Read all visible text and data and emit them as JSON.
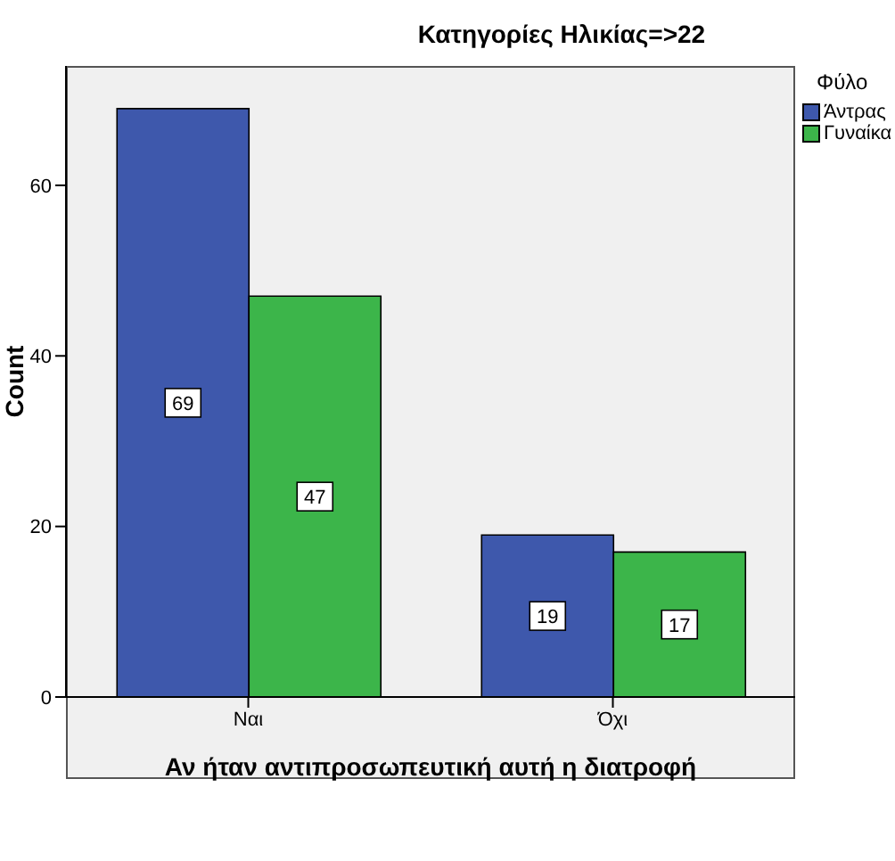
{
  "chart_data": {
    "type": "bar",
    "title": "Κατηγορίες Ηλικίας=>22",
    "xlabel": "Αν ήταν αντιπροσωπευτική αυτή η διατροφή",
    "ylabel": "Count",
    "legend_title": "Φύλο",
    "legend": "top right",
    "categories": [
      "Ναι",
      "Όχι"
    ],
    "series": [
      {
        "name": "Άντρας",
        "color": "#3e58ac",
        "values": [
          69,
          19
        ]
      },
      {
        "name": "Γυναίκα",
        "color": "#3cb54a",
        "values": [
          47,
          17
        ]
      }
    ],
    "ylim": [
      0,
      74
    ],
    "yticks": [
      0,
      20,
      40,
      60
    ],
    "data_labels": true
  }
}
